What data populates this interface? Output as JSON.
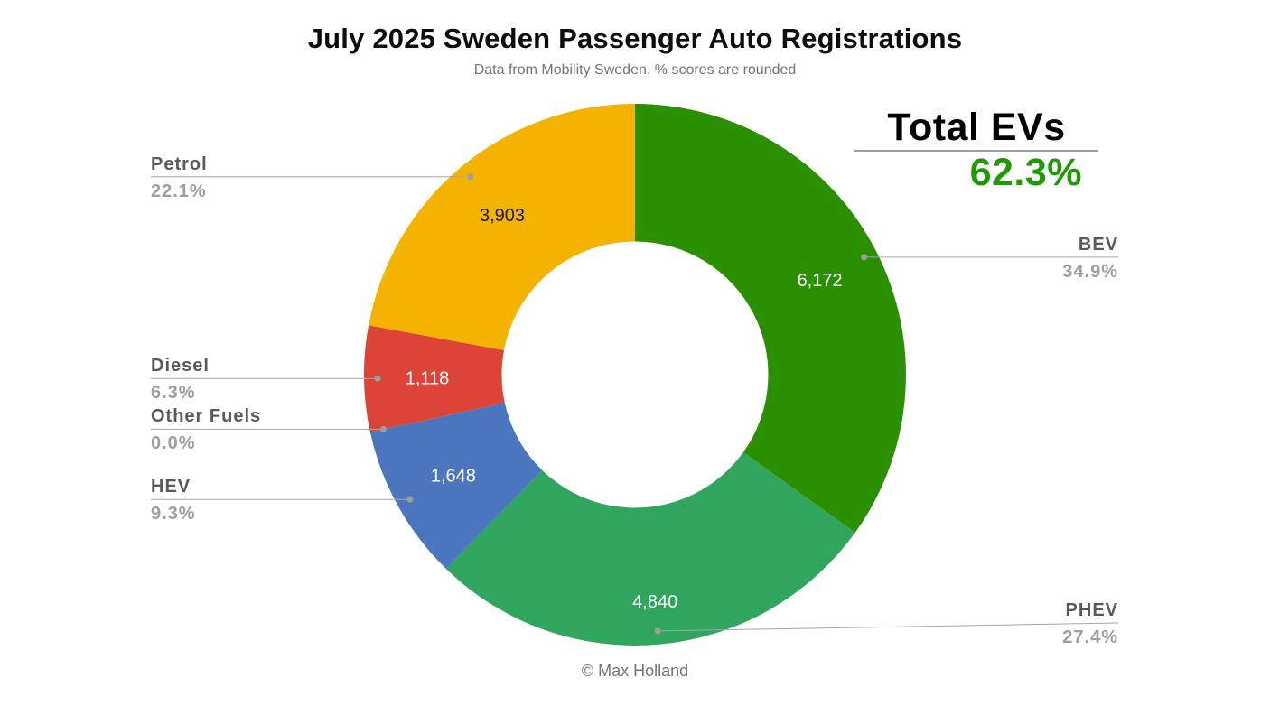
{
  "title": "July 2025 Sweden Passenger Auto Registrations",
  "subtitle": "Data from Mobility Sweden. % scores are rounded",
  "total_evs": {
    "label": "Total EVs",
    "value": "62.3%",
    "value_color": "#1f9a02"
  },
  "footer": "© Max Holland",
  "chart_data": {
    "type": "pie",
    "subtype": "donut",
    "title": "July 2025 Sweden Passenger Auto Registrations",
    "donut_hole_ratio": 0.49,
    "start_angle_deg": 0,
    "direction": "clockwise",
    "legend_position": "labeled-callouts",
    "slices": [
      {
        "label": "BEV",
        "value": 6172,
        "value_label": "6,172",
        "pct": 34.9,
        "pct_label": "34.9%",
        "color": "#2b9001",
        "value_text_color": "#ffffff",
        "callout_side": "right"
      },
      {
        "label": "PHEV",
        "value": 4840,
        "value_label": "4,840",
        "pct": 27.4,
        "pct_label": "27.4%",
        "color": "#30a55e",
        "value_text_color": "#ffffff",
        "callout_side": "right"
      },
      {
        "label": "HEV",
        "value": 1648,
        "value_label": "1,648",
        "pct": 9.3,
        "pct_label": "9.3%",
        "color": "#4b76be",
        "value_text_color": "#ffffff",
        "callout_side": "left"
      },
      {
        "label": "Other Fuels",
        "value": 0,
        "value_label": "",
        "pct": 0.0,
        "pct_label": "0.0%",
        "color": "#888888",
        "value_text_color": "#ffffff",
        "callout_side": "left"
      },
      {
        "label": "Diesel",
        "value": 1118,
        "value_label": "1,118",
        "pct": 6.3,
        "pct_label": "6.3%",
        "color": "#db4437",
        "value_text_color": "#ffffff",
        "callout_side": "left"
      },
      {
        "label": "Petrol",
        "value": 3903,
        "value_label": "3,903",
        "pct": 22.1,
        "pct_label": "22.1%",
        "color": "#f3b300",
        "value_text_color": "#1a1a1a",
        "callout_side": "left"
      }
    ]
  }
}
